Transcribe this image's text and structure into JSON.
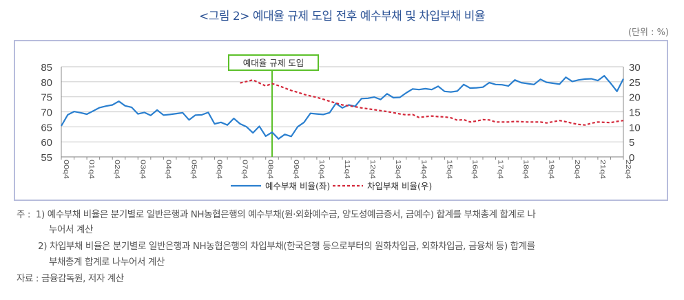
{
  "title": "<그림 2>  예대율 규제 도입 전후 예수부채 및 차입부채 비율",
  "unit": "(단위 : %)",
  "notes": {
    "prefix": "주 :",
    "note1_line1": "1) 예수부채 비율은 분기별로 일반은행과 NH농협은행의 예수부채(원·외화예수금, 양도성예금증서, 금예수) 합계를 부채총계 합계로 나",
    "note1_line2": "누어서 계산",
    "note2_line1": "2) 차입부채 비율은 분기별로 일반은행과 NH농협은행의 차입부채(한국은행 등으로부터의 원화차입금, 외화차입금, 금융채 등) 합계를",
    "note2_line2": "부채총계 합계로 나누어서 계산",
    "source": "자료 : 금융감독원, 저자 계산"
  },
  "chart_data": {
    "type": "line",
    "title": "",
    "x_tick_labels": [
      "00q4",
      "01q4",
      "02q4",
      "03q4",
      "04q4",
      "05q4",
      "06q4",
      "07q4",
      "08q4",
      "09q4",
      "10q4",
      "11q4",
      "12q4",
      "13q4",
      "14q4",
      "15q4",
      "16q4",
      "17q4",
      "18q4",
      "19q4",
      "20q4",
      "21q4",
      "22q4"
    ],
    "x": [
      "00q4",
      "01q1",
      "01q2",
      "01q3",
      "01q4",
      "02q1",
      "02q2",
      "02q3",
      "02q4",
      "03q1",
      "03q2",
      "03q3",
      "03q4",
      "04q1",
      "04q2",
      "04q3",
      "04q4",
      "05q1",
      "05q2",
      "05q3",
      "05q4",
      "06q1",
      "06q2",
      "06q3",
      "06q4",
      "07q1",
      "07q2",
      "07q3",
      "07q4",
      "08q1",
      "08q2",
      "08q3",
      "08q4",
      "09q1",
      "09q2",
      "09q3",
      "09q4",
      "10q1",
      "10q2",
      "10q3",
      "10q4",
      "11q1",
      "11q2",
      "11q3",
      "11q4",
      "12q1",
      "12q2",
      "12q3",
      "12q4",
      "13q1",
      "13q2",
      "13q3",
      "13q4",
      "14q1",
      "14q2",
      "14q3",
      "14q4",
      "15q1",
      "15q2",
      "15q3",
      "15q4",
      "16q1",
      "16q2",
      "16q3",
      "16q4",
      "17q1",
      "17q2",
      "17q3",
      "17q4",
      "18q1",
      "18q2",
      "18q3",
      "18q4",
      "19q1",
      "19q2",
      "19q3",
      "19q4",
      "20q1",
      "20q2",
      "20q3",
      "20q4",
      "21q1",
      "21q2",
      "21q3",
      "21q4",
      "22q1",
      "22q2",
      "22q3",
      "22q4"
    ],
    "left_axis": {
      "ylim": [
        55,
        85
      ],
      "ticks": [
        55,
        60,
        65,
        70,
        75,
        80,
        85
      ]
    },
    "right_axis": {
      "ylim": [
        0,
        30
      ],
      "ticks": [
        0,
        5,
        10,
        15,
        20,
        25,
        30
      ]
    },
    "grid": true,
    "legend_placement": "bottom",
    "series": [
      {
        "name": "예수부채 비율(좌)",
        "axis": "left",
        "style": "solid",
        "color": "#2a7fcf",
        "values": [
          65.3,
          69,
          70.1,
          69.7,
          69.2,
          70.3,
          71.4,
          71.9,
          72.3,
          73.5,
          72,
          71.5,
          69.3,
          69.8,
          68.8,
          70.6,
          68.9,
          69.1,
          69.4,
          69.7,
          67.3,
          68.9,
          69,
          69.8,
          66,
          66.5,
          65.6,
          67.8,
          66,
          65,
          63,
          65.2,
          61.9,
          63.2,
          61,
          62.5,
          61.8,
          65,
          66.5,
          69.5,
          69.3,
          69.1,
          69.7,
          72.8,
          71.3,
          72.3,
          71.8,
          74.4,
          74.5,
          74.9,
          74.1,
          76,
          74.7,
          74.8,
          76.3,
          77.6,
          77.4,
          77.7,
          77.4,
          78.5,
          76.8,
          76.6,
          76.9,
          79.1,
          77.9,
          78,
          78.2,
          79.7,
          79.1,
          79,
          78.6,
          80.6,
          79.7,
          79.4,
          79.1,
          80.8,
          79.8,
          79.5,
          79.2,
          81.5,
          80.1,
          80.6,
          80.9,
          81,
          80.4,
          82,
          79.5,
          76.8,
          81
        ]
      },
      {
        "name": "차입부채 비율(우)",
        "axis": "right",
        "style": "dashed",
        "color": "#d4283a",
        "values": [
          null,
          null,
          null,
          null,
          null,
          null,
          null,
          null,
          null,
          null,
          null,
          null,
          null,
          null,
          null,
          null,
          null,
          null,
          null,
          null,
          null,
          null,
          null,
          null,
          null,
          null,
          null,
          null,
          24.6,
          25.1,
          25.6,
          24.6,
          23.6,
          24.4,
          23.7,
          22.9,
          22.1,
          21.5,
          20.8,
          20.3,
          19.8,
          19.2,
          18.5,
          17.9,
          17.3,
          17,
          16.7,
          16.3,
          16,
          15.7,
          15.4,
          15.1,
          14.7,
          14.3,
          14,
          14.1,
          13.1,
          13.4,
          13.6,
          13.4,
          13.3,
          13,
          12.2,
          12.4,
          11.6,
          11.9,
          12.4,
          12.3,
          11.6,
          11.6,
          11.6,
          11.8,
          11.7,
          11.6,
          11.6,
          11.6,
          11.3,
          11.7,
          12.1,
          11.7,
          11.2,
          10.8,
          10.6,
          11.2,
          11.6,
          11.5,
          11.4,
          11.8,
          12.1
        ]
      }
    ],
    "annotation": {
      "label": "예대율 규제 도입",
      "x": "09q1",
      "color": "#5cc02a"
    }
  }
}
